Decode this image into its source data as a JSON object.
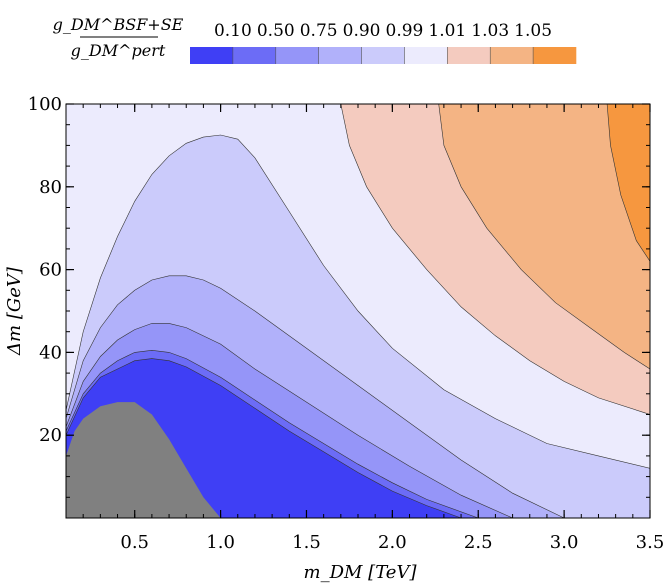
{
  "chart_data": {
    "type": "contour",
    "xlabel": "m_DM [TeV]",
    "ylabel": "Δm [GeV]",
    "colorbar_title": {
      "numerator": "g_DM^BSF+SE",
      "denominator": "g_DM^pert"
    },
    "xlim": [
      0.1,
      3.5
    ],
    "ylim": [
      0,
      100
    ],
    "x_ticks": [
      "0.5",
      "1.0",
      "1.5",
      "2.0",
      "2.5",
      "3.0",
      "3.5"
    ],
    "y_ticks": [
      "20",
      "40",
      "60",
      "80",
      "100"
    ],
    "legend_levels": [
      "0.10",
      "0.50",
      "0.75",
      "0.90",
      "0.99",
      "1.01",
      "1.03",
      "1.05"
    ],
    "colors": [
      "#3f3ff5",
      "#6c6cf6",
      "#9595f8",
      "#b1b1fa",
      "#cbcbfb",
      "#ecebfd",
      "#f4cbbf",
      "#f4b484",
      "#f6973f"
    ],
    "excluded_region_color": "#808080",
    "excluded_region": {
      "x": [
        0.1,
        0.15,
        0.2,
        0.3,
        0.4,
        0.5,
        0.6,
        0.7,
        0.8,
        0.9,
        1.0
      ],
      "y": [
        15,
        21,
        24,
        27,
        28,
        28,
        25,
        19,
        12,
        5,
        0
      ]
    },
    "contours": [
      {
        "level": "0.10",
        "x": [
          0.1,
          0.2,
          0.3,
          0.4,
          0.5,
          0.6,
          0.7,
          0.8,
          1.0,
          1.2,
          1.4,
          1.6,
          1.8,
          2.0,
          2.2,
          2.4
        ],
        "y": [
          20,
          29,
          34,
          36,
          38,
          38.5,
          38,
          36.5,
          32,
          26.5,
          21,
          16,
          11,
          6.5,
          3,
          0
        ]
      },
      {
        "level": "0.50",
        "x": [
          0.1,
          0.2,
          0.3,
          0.4,
          0.5,
          0.6,
          0.7,
          0.8,
          1.0,
          1.2,
          1.4,
          1.6,
          1.8,
          2.0,
          2.2,
          2.5
        ],
        "y": [
          21,
          30,
          35,
          38,
          40,
          40.5,
          40,
          38.5,
          34,
          28.5,
          23,
          18,
          13,
          8.5,
          4.5,
          0
        ]
      },
      {
        "level": "0.75",
        "x": [
          0.1,
          0.2,
          0.3,
          0.4,
          0.5,
          0.6,
          0.7,
          0.8,
          1.0,
          1.2,
          1.5,
          1.8,
          2.1,
          2.4,
          2.7
        ],
        "y": [
          22,
          33,
          39,
          43,
          45.5,
          47,
          47,
          46,
          42,
          36,
          28,
          20,
          12.5,
          5.5,
          0
        ]
      },
      {
        "level": "0.90",
        "x": [
          0.1,
          0.2,
          0.3,
          0.4,
          0.5,
          0.6,
          0.7,
          0.8,
          0.9,
          1.0,
          1.2,
          1.5,
          1.8,
          2.1,
          2.4,
          2.7,
          3.0
        ],
        "y": [
          24,
          38,
          46,
          51.5,
          55,
          57.5,
          58.5,
          58.5,
          57.5,
          55.5,
          50,
          41,
          32,
          23,
          14,
          6,
          0
        ]
      },
      {
        "level": "0.99",
        "x": [
          0.1,
          0.2,
          0.3,
          0.4,
          0.5,
          0.6,
          0.7,
          0.8,
          0.9,
          1.0,
          1.1,
          1.2,
          1.4,
          1.6,
          1.8,
          2.0,
          2.3,
          2.6,
          2.9,
          3.2,
          3.5
        ],
        "y": [
          26,
          45,
          58,
          68,
          76.5,
          83,
          87.5,
          90.5,
          92,
          92.5,
          91.5,
          87,
          74,
          61,
          50,
          41,
          31,
          24,
          18,
          15,
          12
        ]
      },
      {
        "level": "1.01",
        "x": [
          1.7,
          1.75,
          1.85,
          2.0,
          2.2,
          2.4,
          2.6,
          2.8,
          3.0,
          3.2,
          3.5
        ],
        "y": [
          100,
          90,
          80,
          70,
          60,
          51,
          44,
          38,
          33,
          29,
          25
        ]
      },
      {
        "level": "1.03",
        "x": [
          2.27,
          2.3,
          2.4,
          2.55,
          2.75,
          2.95,
          3.15,
          3.35,
          3.5
        ],
        "y": [
          100,
          90,
          80,
          70,
          60,
          52,
          46,
          40,
          36
        ]
      },
      {
        "level": "1.05",
        "x": [
          3.25,
          3.27,
          3.33,
          3.42,
          3.5
        ],
        "y": [
          100,
          90,
          78,
          67,
          62
        ]
      }
    ]
  }
}
